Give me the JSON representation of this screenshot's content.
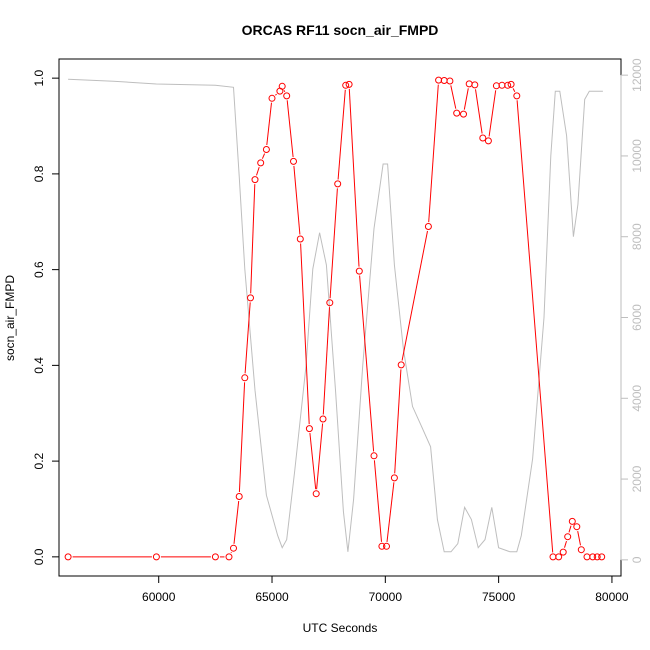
{
  "chart_data": {
    "type": "line",
    "title": "ORCAS RF11 socn_air_FMPD",
    "xlabel": "UTC Seconds",
    "ylabel": "socn_air_FMPD",
    "xlim": [
      55600,
      80400
    ],
    "ylim": [
      -0.04,
      1.04
    ],
    "y2lim": [
      -400,
      12400
    ],
    "x_ticks": [
      60000,
      65000,
      70000,
      75000,
      80000
    ],
    "x_tick_labels": [
      "60000",
      "65000",
      "70000",
      "75000",
      "80000"
    ],
    "y_ticks": [
      0.0,
      0.2,
      0.4,
      0.6,
      0.8,
      1.0
    ],
    "y_tick_labels": [
      "0.0",
      "0.2",
      "0.4",
      "0.6",
      "0.8",
      "1.0"
    ],
    "y2_ticks": [
      0,
      2000,
      4000,
      6000,
      8000,
      10000,
      12000
    ],
    "y2_tick_labels": [
      "0",
      "2000",
      "4000",
      "6000",
      "8000",
      "10000",
      "12000"
    ],
    "series": [
      {
        "role": "primary",
        "color": "#ff0000",
        "marker": "circle-open",
        "x": [
          56000,
          59900,
          62500,
          63100,
          63300,
          63550,
          63800,
          64050,
          64250,
          64500,
          64750,
          65000,
          65350,
          65450,
          65650,
          65950,
          66250,
          66650,
          66950,
          67250,
          67550,
          67900,
          68250,
          68400,
          68850,
          69500,
          69850,
          70050,
          70400,
          70700,
          71900,
          72350,
          72600,
          72850,
          73150,
          73450,
          73700,
          73950,
          74300,
          74550,
          74900,
          75150,
          75400,
          75550,
          75800,
          77400,
          77650,
          77850,
          78050,
          78250,
          78450,
          78650,
          78900,
          79150,
          79350,
          79550
        ],
        "y": [
          0.0,
          0.0,
          0.0,
          0.0,
          0.018,
          0.126,
          0.374,
          0.541,
          0.788,
          0.823,
          0.851,
          0.958,
          0.973,
          0.983,
          0.963,
          0.826,
          0.664,
          0.268,
          0.132,
          0.288,
          0.531,
          0.779,
          0.985,
          0.987,
          0.597,
          0.211,
          0.022,
          0.022,
          0.165,
          0.401,
          0.69,
          0.996,
          0.995,
          0.994,
          0.927,
          0.925,
          0.988,
          0.986,
          0.875,
          0.869,
          0.984,
          0.985,
          0.985,
          0.987,
          0.963,
          0.0,
          0.0,
          0.01,
          0.042,
          0.074,
          0.063,
          0.015,
          0.0,
          0.0,
          0.0,
          0.0
        ]
      },
      {
        "role": "secondary",
        "color": "#bebebe",
        "x": [
          56000,
          58000,
          59900,
          62500,
          63300,
          63550,
          63800,
          64250,
          64750,
          65250,
          65450,
          65650,
          66000,
          66500,
          66800,
          67100,
          67400,
          67800,
          68150,
          68350,
          68600,
          69000,
          69500,
          69900,
          70100,
          70400,
          70800,
          71200,
          71600,
          72000,
          72300,
          72600,
          72900,
          73200,
          73500,
          73800,
          74100,
          74400,
          74700,
          75000,
          75500,
          75800,
          76000,
          76500,
          77000,
          77300,
          77500,
          77700,
          78000,
          78300,
          78500,
          78800,
          79000,
          79300,
          79600
        ],
        "y": [
          11900,
          11850,
          11780,
          11750,
          11700,
          9500,
          7200,
          4200,
          1600,
          600,
          300,
          500,
          2200,
          4800,
          7200,
          8100,
          7300,
          4200,
          1200,
          200,
          1500,
          4800,
          8200,
          9800,
          9800,
          7300,
          5200,
          3800,
          3300,
          2800,
          1000,
          200,
          200,
          400,
          1300,
          1000,
          300,
          500,
          1300,
          300,
          200,
          200,
          600,
          2500,
          6000,
          10000,
          11600,
          11600,
          10500,
          8000,
          8800,
          11400,
          11600,
          11600,
          11600
        ]
      }
    ],
    "grid": false,
    "legend": "none"
  }
}
